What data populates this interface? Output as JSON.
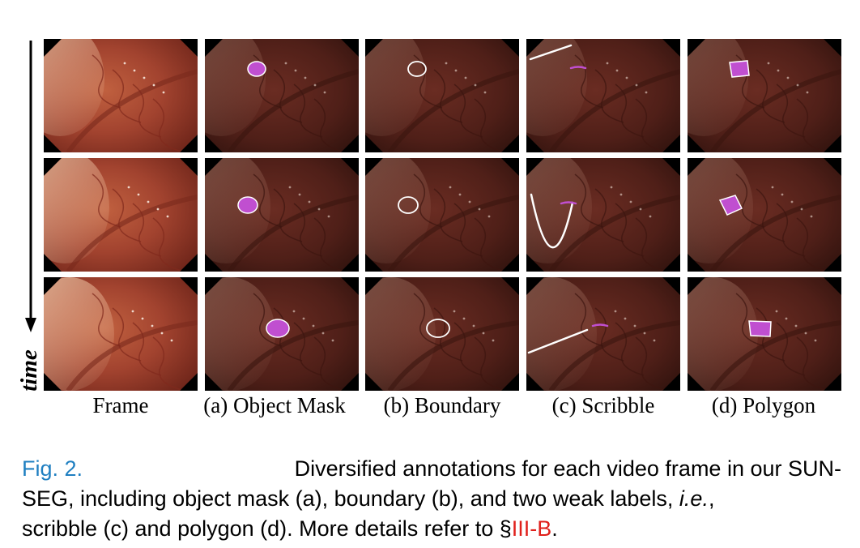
{
  "figure": {
    "axis_label": "time",
    "column_labels": [
      "Frame",
      "(a) Object Mask",
      "(b) Boundary",
      "(c) Scribble",
      "(d) Polygon"
    ],
    "rows": 3,
    "annotation_color": "#c04fd0",
    "tissue_color": "#a2432f"
  },
  "caption": {
    "figure_ref": "Fig. 2.",
    "line1_text": "Diversified annotations for each video frame in our SUN-",
    "line2_text": "SEG, including object mask (a), boundary (b), and two weak labels,",
    "line2_ie": "i.e.",
    "line2_end": ",",
    "line3_text": "scribble (c) and polygon (d). More details refer to §",
    "section_ref": "III-B",
    "line3_end": "."
  }
}
